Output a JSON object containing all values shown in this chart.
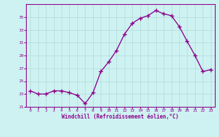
{
  "x": [
    0,
    1,
    2,
    3,
    4,
    5,
    6,
    7,
    8,
    9,
    10,
    11,
    12,
    13,
    14,
    15,
    16,
    17,
    18,
    19,
    20,
    21,
    22,
    23
  ],
  "y": [
    23.5,
    23.0,
    23.0,
    23.5,
    23.5,
    23.2,
    22.8,
    21.5,
    23.2,
    26.5,
    28.0,
    29.8,
    32.3,
    34.0,
    34.8,
    35.2,
    36.0,
    35.5,
    35.2,
    33.5,
    31.2,
    29.0,
    26.5,
    26.8
  ],
  "line_color": "#8B008B",
  "marker": "+",
  "bg_color": "#cef2f2",
  "grid_color": "#b0d8d8",
  "xlabel": "Windchill (Refroidissement éolien,°C)",
  "xlabel_color": "#8B008B",
  "tick_color": "#8B008B",
  "ylim": [
    21,
    37
  ],
  "xlim": [
    -0.5,
    23.5
  ],
  "yticks": [
    21,
    23,
    25,
    27,
    29,
    31,
    33,
    35
  ],
  "xticks": [
    0,
    1,
    2,
    3,
    4,
    5,
    6,
    7,
    8,
    9,
    10,
    11,
    12,
    13,
    14,
    15,
    16,
    17,
    18,
    19,
    20,
    21,
    22,
    23
  ],
  "spine_color": "#8B008B",
  "marker_size": 4,
  "line_width": 1.0
}
